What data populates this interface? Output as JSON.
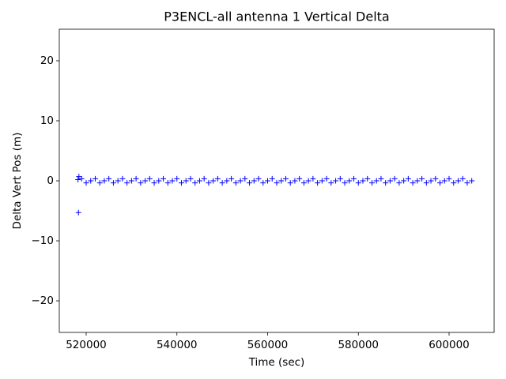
{
  "chart_data": {
    "type": "scatter",
    "title": "P3ENCL-all antenna 1 Vertical Delta",
    "xlabel": "Time (sec)",
    "ylabel": "Delta Vert Pos (m)",
    "color": "#0000ff",
    "marker": "+",
    "x": [
      518200,
      518300,
      518400,
      519000,
      520000,
      521000,
      522000,
      523000,
      524000,
      525000,
      526000,
      527000,
      528000,
      529000,
      530000,
      531000,
      532000,
      533000,
      534000,
      535000,
      536000,
      537000,
      538000,
      539000,
      540000,
      541000,
      542000,
      543000,
      544000,
      545000,
      546000,
      547000,
      548000,
      549000,
      550000,
      551000,
      552000,
      553000,
      554000,
      555000,
      556000,
      557000,
      558000,
      559000,
      560000,
      561000,
      562000,
      563000,
      564000,
      565000,
      566000,
      567000,
      568000,
      569000,
      570000,
      571000,
      572000,
      573000,
      574000,
      575000,
      576000,
      577000,
      578000,
      579000,
      580000,
      581000,
      582000,
      583000,
      584000,
      585000,
      586000,
      587000,
      588000,
      589000,
      590000,
      591000,
      592000,
      593000,
      594000,
      595000,
      596000,
      597000,
      598000,
      599000,
      600000,
      601000,
      602000,
      603000,
      604000,
      605000
    ],
    "y": [
      0.2,
      -5.3,
      0.7,
      0.35,
      -0.35,
      0,
      0.35,
      -0.35,
      0,
      0.35,
      -0.35,
      0,
      0.35,
      -0.35,
      0,
      0.35,
      -0.35,
      0,
      0.35,
      -0.35,
      0,
      0.35,
      -0.35,
      0,
      0.35,
      -0.35,
      0,
      0.35,
      -0.35,
      0,
      0.35,
      -0.35,
      0,
      0.35,
      -0.35,
      0,
      0.35,
      -0.35,
      0,
      0.35,
      -0.35,
      0,
      0.35,
      -0.35,
      0,
      0.35,
      -0.35,
      0,
      0.35,
      -0.35,
      0,
      0.35,
      -0.35,
      0,
      0.35,
      -0.35,
      0,
      0.35,
      -0.35,
      0,
      0.35,
      -0.35,
      0,
      0.35,
      -0.35,
      0,
      0.35,
      -0.35,
      0,
      0.35,
      -0.35,
      0,
      0.35,
      -0.35,
      0,
      0.35,
      -0.35,
      0,
      0.35,
      -0.35,
      0,
      0.35,
      -0.35,
      0,
      0.35,
      -0.35,
      0,
      0.35,
      -0.35,
      0
    ],
    "xlim": [
      514075,
      609934
    ],
    "ylim": [
      -25.26,
      25.26
    ],
    "xticks": [
      520000,
      540000,
      560000,
      580000,
      600000
    ],
    "yticks": [
      {
        "value": -20,
        "label": "−20"
      },
      {
        "value": -10,
        "label": "−10"
      },
      0,
      10,
      20
    ]
  }
}
